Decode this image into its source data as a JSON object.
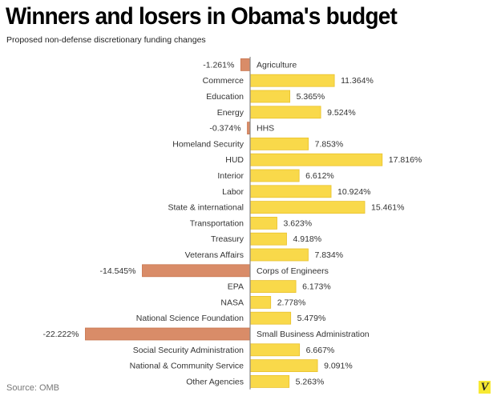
{
  "header": {
    "title": "Winners and losers in Obama's budget",
    "subtitle": "Proposed non-defense discretionary funding changes"
  },
  "footer": {
    "source": "Source: OMB",
    "logo_glyph": "V"
  },
  "colors": {
    "positive": "#f9d94a",
    "positive_stroke": "#e9c22c",
    "negative": "#d98c68",
    "negative_stroke": "#c9764f",
    "axis": "#888888",
    "logo_bg": "#f7e933"
  },
  "chart_data": {
    "type": "bar",
    "orientation": "horizontal",
    "title": "Winners and losers in Obama's budget",
    "subtitle": "Proposed non-defense discretionary funding changes",
    "xlabel": "",
    "ylabel": "",
    "unit": "%",
    "grid": false,
    "legend": "none",
    "xlim": [
      -22.222,
      17.816
    ],
    "categories": [
      "Agriculture",
      "Commerce",
      "Education",
      "Energy",
      "HHS",
      "Homeland Security",
      "HUD",
      "Interior",
      "Labor",
      "State & international",
      "Transportation",
      "Treasury",
      "Veterans Affairs",
      "Corps of Engineers",
      "EPA",
      "NASA",
      "National Science Foundation",
      "Small Business Administration",
      "Social Security Administration",
      "National & Community Service",
      "Other Agencies"
    ],
    "values": [
      -1.261,
      11.364,
      5.365,
      9.524,
      -0.374,
      7.853,
      17.816,
      6.612,
      10.924,
      15.461,
      3.623,
      4.918,
      7.834,
      -14.545,
      6.173,
      2.778,
      5.479,
      -22.222,
      6.667,
      9.091,
      5.263
    ],
    "value_labels": [
      "-1.261%",
      "11.364%",
      "5.365%",
      "9.524%",
      "-0.374%",
      "7.853%",
      "17.816%",
      "6.612%",
      "10.924%",
      "15.461%",
      "3.623%",
      "4.918%",
      "7.834%",
      "-14.545%",
      "6.173%",
      "2.778%",
      "5.479%",
      "-22.222%",
      "6.667%",
      "9.091%",
      "5.263%"
    ]
  },
  "source": "OMB"
}
